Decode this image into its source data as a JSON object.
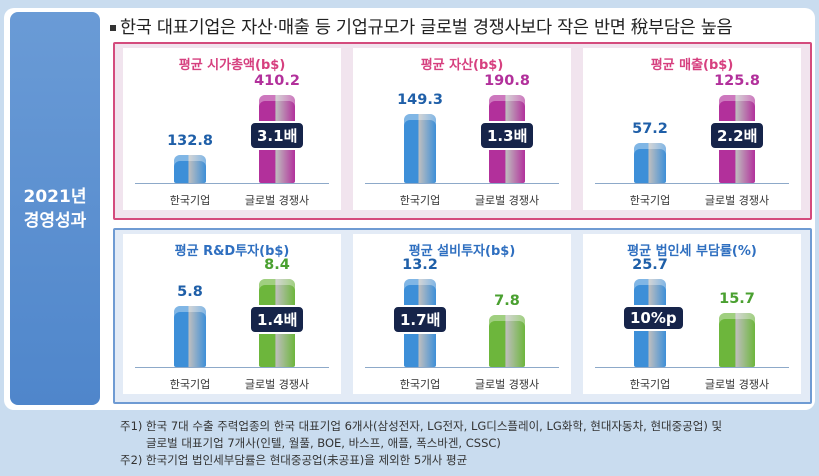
{
  "side_label": [
    "2021년",
    "경영성과"
  ],
  "headline": "한국 대표기업은 자산·매출 등 기업규모가 글로벌 경쟁사보다 작은 반면 稅부담은 높음",
  "colors": {
    "korea": "#3d8fd8",
    "global_top": "#b2309b",
    "global_bottom": "#6db63c",
    "title_top": "#d6407f",
    "title_bottom": "#2f6fc0",
    "value_korea": "#1f5fa8"
  },
  "chart_data": [
    {
      "type": "bar",
      "title": "평균 시가총액(b$)",
      "categories": [
        "한국기업",
        "글로벌 경쟁사"
      ],
      "values": [
        132.8,
        410.2
      ],
      "labels": [
        "132.8",
        "410.2"
      ],
      "ratio": "3.1배",
      "ratio_on": 1,
      "group": "top"
    },
    {
      "type": "bar",
      "title": "평균 자산(b$)",
      "categories": [
        "한국기업",
        "글로벌 경쟁사"
      ],
      "values": [
        149.3,
        190.8
      ],
      "labels": [
        "149.3",
        "190.8"
      ],
      "ratio": "1.3배",
      "ratio_on": 1,
      "group": "top"
    },
    {
      "type": "bar",
      "title": "평균 매출(b$)",
      "categories": [
        "한국기업",
        "글로벌 경쟁사"
      ],
      "values": [
        57.2,
        125.8
      ],
      "labels": [
        "57.2",
        "125.8"
      ],
      "ratio": "2.2배",
      "ratio_on": 1,
      "group": "top"
    },
    {
      "type": "bar",
      "title": "평균 R&D투자(b$)",
      "categories": [
        "한국기업",
        "글로벌 경쟁사"
      ],
      "values": [
        5.8,
        8.4
      ],
      "labels": [
        "5.8",
        "8.4"
      ],
      "ratio": "1.4배",
      "ratio_on": 1,
      "group": "bottom"
    },
    {
      "type": "bar",
      "title": "평균 설비투자(b$)",
      "categories": [
        "한국기업",
        "글로벌 경쟁사"
      ],
      "values": [
        13.2,
        7.8
      ],
      "labels": [
        "13.2",
        "7.8"
      ],
      "ratio": "1.7배",
      "ratio_on": 0,
      "group": "bottom"
    },
    {
      "type": "bar",
      "title": "평균 법인세 부담률(%)",
      "categories": [
        "한국기업",
        "글로벌 경쟁사"
      ],
      "values": [
        25.7,
        15.7
      ],
      "labels": [
        "25.7",
        "15.7"
      ],
      "ratio": "10%p",
      "ratio_on": 0,
      "group": "bottom"
    }
  ],
  "notes": [
    "주1) 한국 7대 수출 주력업종의 한국 대표기업 6개사(삼성전자, LG전자, LG디스플레이, LG화학, 현대자동차, 현대중공업) 및",
    "글로벌 대표기업 7개사(인텔, 월풀, BOE, 바스프, 애플, 폭스바겐, CSSC)",
    "주2) 한국기업 법인세부담률은 현대중공업(未공표)을 제외한 5개사 평균"
  ]
}
